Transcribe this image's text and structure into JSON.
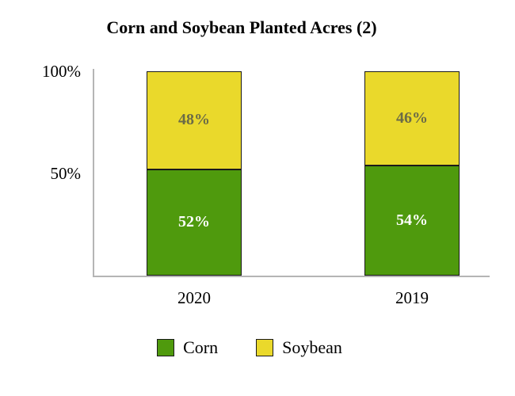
{
  "chart_data": {
    "type": "bar",
    "stacked": true,
    "title": "Corn and Soybean Planted Acres (2)",
    "categories": [
      "2020",
      "2019"
    ],
    "series": [
      {
        "name": "Corn",
        "color": "#4f9a0d",
        "label_color": "#ffffff",
        "values": [
          52,
          54
        ]
      },
      {
        "name": "Soybean",
        "color": "#ead92b",
        "label_color": "#6b6b47",
        "values": [
          48,
          46
        ]
      }
    ],
    "y_ticks": [
      {
        "label": "100%",
        "value": 100
      },
      {
        "label": "50%",
        "value": 50
      }
    ],
    "ylim": [
      0,
      100
    ],
    "value_suffix": "%",
    "legend_position": "bottom",
    "axis_color": "#b5b5b5"
  }
}
